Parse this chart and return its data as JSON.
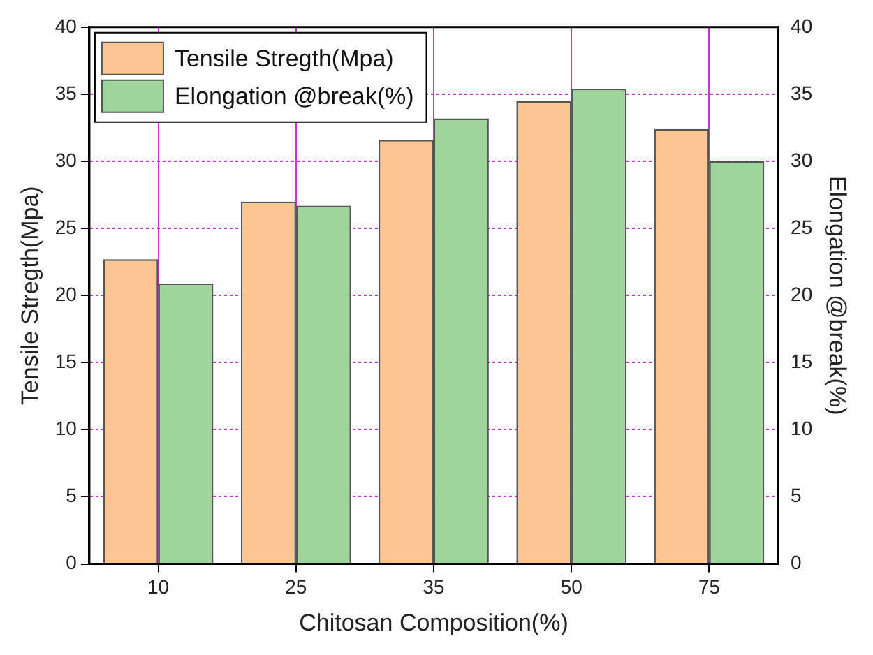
{
  "chart_data": {
    "type": "bar",
    "xlabel": "Chitosan Composition(%)",
    "ylabel": "Tensile Stregth(Mpa)",
    "y2label": "Elongation @break(%)",
    "categories": [
      "10",
      "25",
      "35",
      "50",
      "75"
    ],
    "series": [
      {
        "name": "Tensile Stregth(Mpa)",
        "color": "#fbc693",
        "values": [
          22.7,
          27.0,
          31.6,
          34.5,
          32.4
        ]
      },
      {
        "name": "Elongation @break(%)",
        "color": "#9ed59a",
        "values": [
          20.9,
          26.7,
          33.2,
          35.4,
          30.0
        ],
        "axis": "y2"
      }
    ],
    "ylim": [
      0,
      40
    ],
    "yticks": [
      0,
      5,
      10,
      15,
      20,
      25,
      30,
      35,
      40
    ],
    "y2lim": [
      0,
      40
    ],
    "y2ticks": [
      0,
      5,
      10,
      15,
      20,
      25,
      30,
      35,
      40
    ],
    "grid": true,
    "legend": "top left"
  }
}
